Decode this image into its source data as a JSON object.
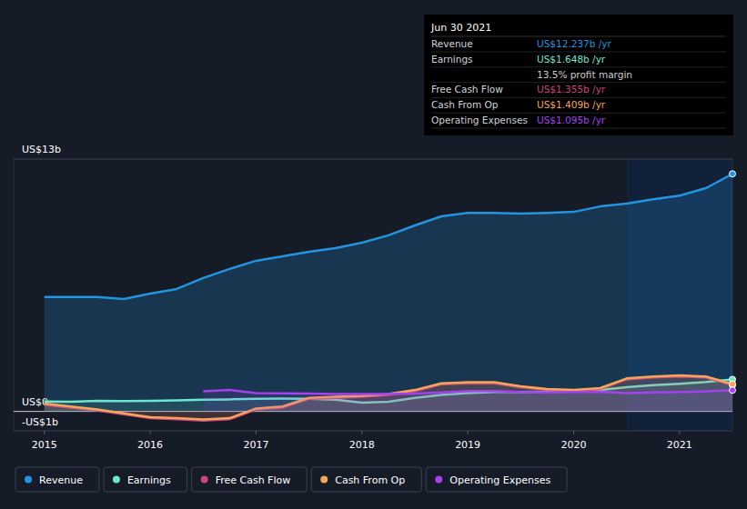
{
  "chart_data": {
    "type": "line",
    "x": [
      2015,
      2015.25,
      2015.5,
      2015.75,
      2016,
      2016.25,
      2016.5,
      2016.75,
      2017,
      2017.25,
      2017.5,
      2017.75,
      2018,
      2018.25,
      2018.5,
      2018.75,
      2019,
      2019.25,
      2019.5,
      2019.75,
      2020,
      2020.25,
      2020.5,
      2020.75,
      2021,
      2021.25,
      2021.5
    ],
    "xlim": [
      2014.71,
      2021.5
    ],
    "xticks": [
      2015,
      2016,
      2017,
      2018,
      2019,
      2020,
      2021
    ],
    "ylim": [
      -1,
      13
    ],
    "yticks": [
      {
        "value": -1,
        "label": "-US$1b"
      },
      {
        "value": 0,
        "label": "US$0"
      },
      {
        "value": 13,
        "label": "US$13b"
      }
    ],
    "legend": "bottom",
    "series": [
      {
        "name": "Revenue",
        "color": "#2394df",
        "values": [
          5.89,
          5.89,
          5.89,
          5.79,
          6.07,
          6.31,
          6.87,
          7.34,
          7.76,
          7.99,
          8.22,
          8.41,
          8.69,
          9.07,
          9.58,
          10.05,
          10.23,
          10.23,
          10.19,
          10.23,
          10.28,
          10.56,
          10.7,
          10.93,
          11.12,
          11.5,
          12.237
        ]
      },
      {
        "name": "Earnings",
        "color": "#6ce8cf",
        "values": [
          0.51,
          0.5,
          0.55,
          0.53,
          0.55,
          0.57,
          0.6,
          0.62,
          0.65,
          0.66,
          0.65,
          0.6,
          0.45,
          0.5,
          0.7,
          0.85,
          0.95,
          1.0,
          1.0,
          1.02,
          1.05,
          1.1,
          1.25,
          1.35,
          1.42,
          1.52,
          1.648
        ]
      },
      {
        "name": "Free Cash Flow",
        "color": "#c9477e",
        "values": [
          0.35,
          0.2,
          0.05,
          -0.15,
          -0.35,
          -0.4,
          -0.47,
          -0.4,
          0.1,
          0.2,
          0.65,
          0.7,
          0.75,
          0.85,
          1.05,
          1.4,
          1.45,
          1.45,
          1.25,
          1.1,
          1.05,
          1.15,
          1.65,
          1.75,
          1.8,
          1.75,
          1.355
        ]
      },
      {
        "name": "Cash From Op",
        "color": "#f5a65b",
        "values": [
          0.4,
          0.25,
          0.1,
          -0.1,
          -0.3,
          -0.35,
          -0.42,
          -0.35,
          0.15,
          0.25,
          0.7,
          0.75,
          0.8,
          0.9,
          1.1,
          1.45,
          1.5,
          1.5,
          1.3,
          1.15,
          1.1,
          1.2,
          1.7,
          1.8,
          1.85,
          1.8,
          1.409
        ]
      },
      {
        "name": "Operating Expenses",
        "color": "#a541f0",
        "values": [
          null,
          null,
          null,
          null,
          null,
          null,
          1.03,
          1.1,
          0.95,
          0.93,
          0.92,
          0.9,
          0.9,
          0.9,
          0.92,
          0.98,
          1.05,
          1.05,
          1.0,
          0.98,
          1.0,
          1.02,
          0.95,
          0.98,
          1.0,
          1.03,
          1.095
        ]
      }
    ],
    "annotation": {
      "title": "Jun 30 2021",
      "rows": [
        {
          "label": "Revenue",
          "value": "US$12.237b /yr",
          "color": "#2394df"
        },
        {
          "label": "Earnings",
          "value": "US$1.648b /yr",
          "color": "#6ce8cf"
        },
        {
          "label": "",
          "value": "13.5% profit margin",
          "color": "#cccccc"
        },
        {
          "label": "Free Cash Flow",
          "value": "US$1.355b /yr",
          "color": "#c9477e"
        },
        {
          "label": "Cash From Op",
          "value": "US$1.409b /yr",
          "color": "#f5a65b"
        },
        {
          "label": "Operating Expenses",
          "value": "US$1.095b /yr",
          "color": "#a541f0"
        }
      ]
    }
  }
}
